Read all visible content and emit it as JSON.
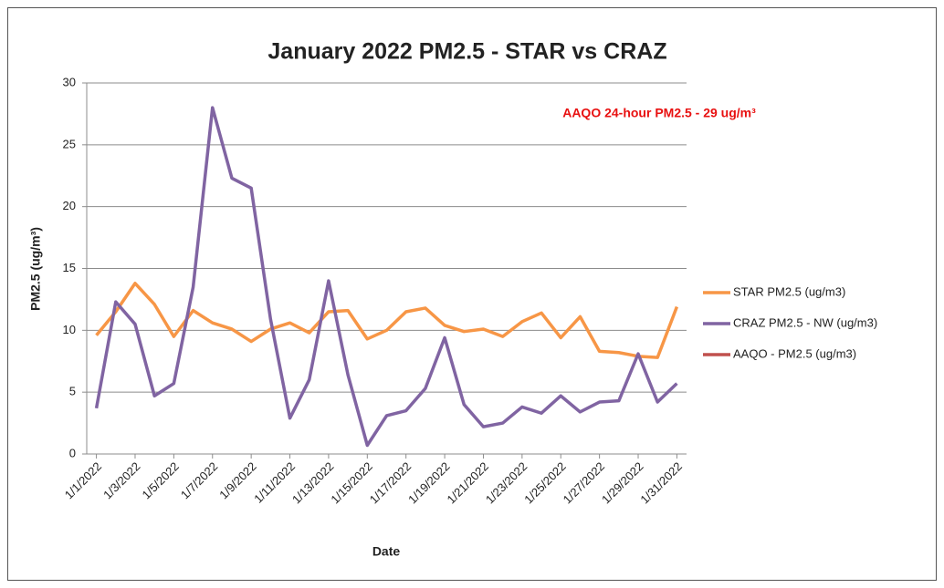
{
  "chart_data": {
    "type": "line",
    "title": "January 2022 PM2.5 - STAR vs CRAZ",
    "x_label": "Date",
    "y_label": "PM2.5 (ug/m³)",
    "annotation": "AAQO 24-hour PM2.5 - 29 ug/m³",
    "categories": [
      "1/1/2022",
      null,
      "1/3/2022",
      null,
      "1/5/2022",
      null,
      "1/7/2022",
      null,
      "1/9/2022",
      null,
      "1/11/2022",
      null,
      "1/13/2022",
      null,
      "1/15/2022",
      null,
      "1/17/2022",
      null,
      "1/19/2022",
      null,
      "1/21/2022",
      null,
      "1/23/2022",
      null,
      "1/25/2022",
      null,
      "1/27/2022",
      null,
      "1/29/2022",
      null,
      "1/31/2022"
    ],
    "series": [
      {
        "name": "STAR PM2.5 (ug/m3)",
        "color": "#f79646",
        "values": [
          9.6,
          11.5,
          13.8,
          12.1,
          9.5,
          11.6,
          10.6,
          10.1,
          9.1,
          10.1,
          10.6,
          9.8,
          11.5,
          11.6,
          9.3,
          10.0,
          11.5,
          11.8,
          10.4,
          9.9,
          10.1,
          9.5,
          10.7,
          11.4,
          9.4,
          11.1,
          8.3,
          8.2,
          7.9,
          7.8,
          11.9
        ]
      },
      {
        "name": "CRAZ PM2.5 - NW (ug/m3)",
        "color": "#8064a2",
        "values": [
          3.7,
          12.3,
          10.5,
          4.7,
          5.7,
          13.5,
          28.0,
          22.3,
          21.5,
          10.9,
          2.9,
          6.0,
          14.0,
          6.4,
          0.7,
          3.1,
          3.5,
          5.3,
          9.4,
          4.0,
          2.2,
          2.5,
          3.8,
          3.3,
          4.7,
          3.4,
          4.2,
          4.3,
          8.1,
          4.2,
          5.7
        ]
      },
      {
        "name": "AAQO - PM2.5 (ug/m3)",
        "color": "#c0504d",
        "values": [
          null,
          null,
          null,
          null,
          null,
          null,
          null,
          null,
          null,
          null,
          null,
          null,
          null,
          null,
          null,
          null,
          null,
          null,
          null,
          null,
          null,
          null,
          null,
          null,
          null,
          null,
          null,
          null,
          null,
          null,
          null
        ]
      }
    ],
    "ylim": [
      0,
      30
    ],
    "yticks": [
      0,
      5,
      10,
      15,
      20,
      25,
      30
    ],
    "grid": true,
    "legend": "right"
  }
}
